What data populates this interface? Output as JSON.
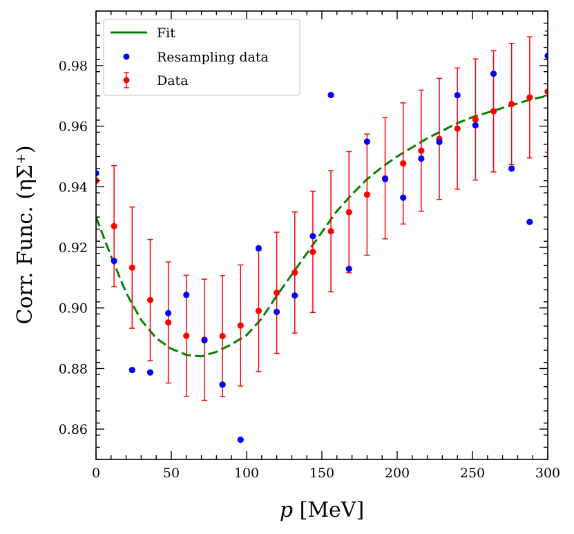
{
  "chart_data": {
    "type": "scatter",
    "xlabel_var": "p",
    "xlabel_unit": "[MeV]",
    "ylabel": "Corr. Func. (ηΣ⁺)",
    "xlim": [
      0,
      300
    ],
    "ylim": [
      0.85,
      0.998
    ],
    "x_ticks": [
      0,
      50,
      100,
      150,
      200,
      250,
      300
    ],
    "y_ticks": [
      0.86,
      0.88,
      0.9,
      0.92,
      0.94,
      0.96,
      0.98
    ],
    "y_tick_labels": [
      "0.86",
      "0.88",
      "0.90",
      "0.92",
      "0.94",
      "0.96",
      "0.98"
    ],
    "grid": false,
    "legend_position": "top-left",
    "legend": [
      "Fit",
      "Resampling data",
      "Data"
    ],
    "series": [
      {
        "name": "Fit",
        "kind": "line",
        "style": "dashed",
        "color": "#008000",
        "x": [
          0,
          10,
          20,
          30,
          40,
          50,
          60,
          70,
          80,
          90,
          100,
          110,
          120,
          130,
          140,
          150,
          160,
          170,
          180,
          190,
          200,
          210,
          220,
          230,
          240,
          250,
          260,
          270,
          280,
          290,
          300
        ],
        "y": [
          0.93,
          0.917,
          0.905,
          0.896,
          0.89,
          0.8865,
          0.8845,
          0.884,
          0.8855,
          0.888,
          0.891,
          0.8965,
          0.904,
          0.911,
          0.918,
          0.925,
          0.932,
          0.9375,
          0.9425,
          0.9465,
          0.95,
          0.953,
          0.956,
          0.9585,
          0.961,
          0.963,
          0.9645,
          0.966,
          0.9675,
          0.969,
          0.97
        ]
      },
      {
        "name": "Resampling data",
        "kind": "scatter",
        "color": "#0000ff",
        "x": [
          0,
          12,
          24,
          36,
          48,
          60,
          72,
          84,
          96,
          108,
          120,
          132,
          144,
          156,
          168,
          180,
          192,
          204,
          216,
          228,
          240,
          252,
          264,
          276,
          288,
          300
        ],
        "y": [
          0.9445,
          0.9155,
          0.8795,
          0.8787,
          0.8983,
          0.9043,
          0.8893,
          0.8747,
          0.8565,
          0.9197,
          0.8987,
          0.9041,
          0.9237,
          0.9703,
          0.9129,
          0.9549,
          0.9425,
          0.9364,
          0.9493,
          0.9548,
          0.9702,
          0.9603,
          0.9773,
          0.946,
          0.9284,
          0.9832
        ]
      },
      {
        "name": "Data",
        "kind": "errorbar",
        "color": "#ff0000",
        "x": [
          0,
          12,
          24,
          36,
          48,
          60,
          72,
          84,
          96,
          108,
          120,
          132,
          144,
          156,
          168,
          180,
          192,
          204,
          216,
          228,
          240,
          252,
          264,
          276,
          288,
          300
        ],
        "y": [
          0.942,
          0.927,
          0.9133,
          0.9026,
          0.8952,
          0.8908,
          0.8895,
          0.8907,
          0.8942,
          0.899,
          0.905,
          0.9117,
          0.9185,
          0.9253,
          0.9316,
          0.9374,
          0.9428,
          0.9477,
          0.9519,
          0.9558,
          0.9592,
          0.9622,
          0.9649,
          0.9673,
          0.9695,
          0.9714
        ],
        "err": [
          0.02,
          0.02,
          0.02,
          0.02,
          0.02,
          0.02,
          0.02,
          0.02,
          0.02,
          0.02,
          0.02,
          0.02,
          0.02,
          0.02,
          0.02,
          0.02,
          0.02,
          0.02,
          0.02,
          0.02,
          0.02,
          0.02,
          0.02,
          0.02,
          0.02,
          0.02
        ]
      }
    ]
  }
}
